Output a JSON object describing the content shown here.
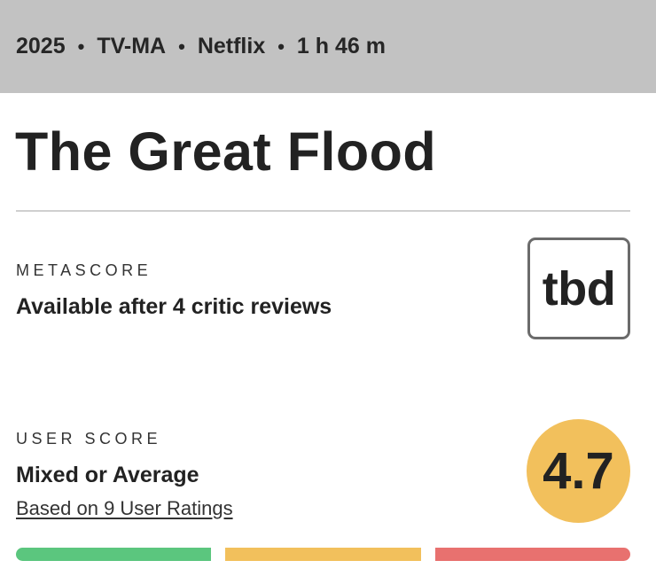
{
  "meta": {
    "year": "2025",
    "rating": "TV-MA",
    "network": "Netflix",
    "runtime": "1 h 46 m",
    "separator": "•"
  },
  "title": "The Great Flood",
  "metascore": {
    "label": "METASCORE",
    "status": "Available after 4 critic reviews",
    "score": "tbd"
  },
  "user_score": {
    "label": "USER SCORE",
    "verdict": "Mixed or Average",
    "ratings_link": "Based on 9 User Ratings",
    "score": "4.7",
    "color": "#f2c05c"
  },
  "distribution": [
    {
      "name": "positive",
      "color": "#5bc67e"
    },
    {
      "name": "mixed",
      "color": "#f2c05c"
    },
    {
      "name": "negative",
      "color": "#e8716f"
    }
  ]
}
